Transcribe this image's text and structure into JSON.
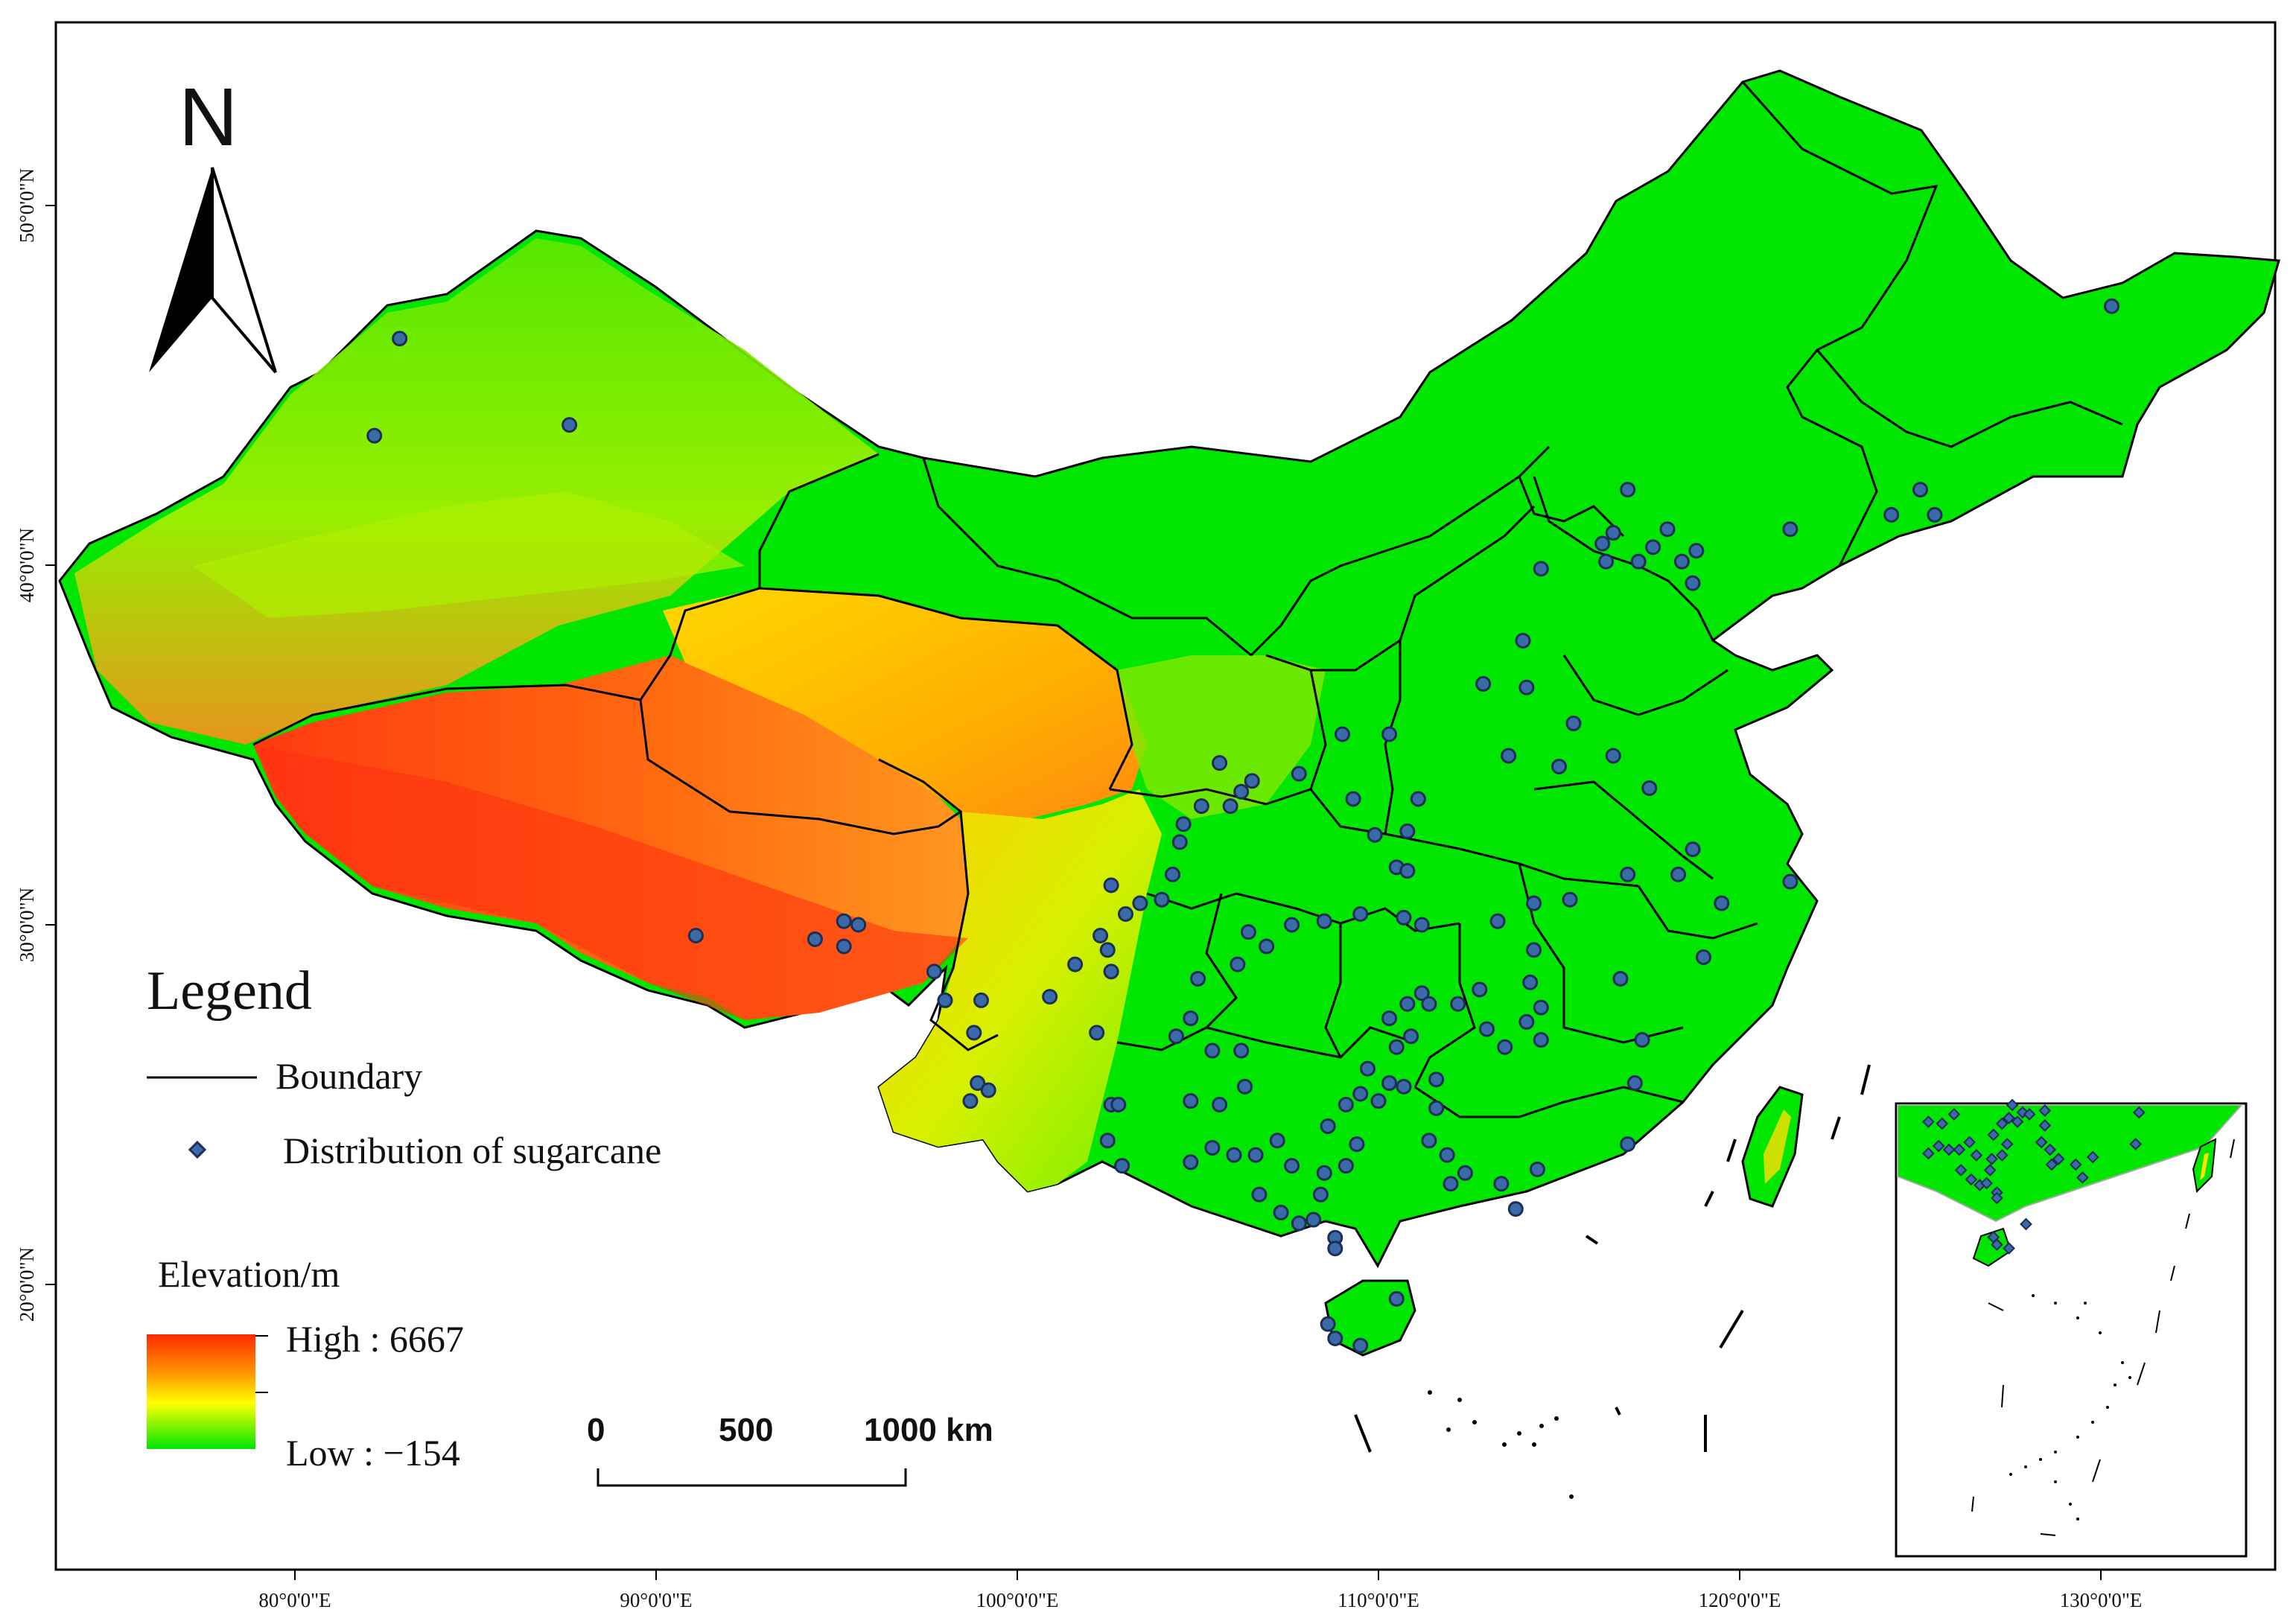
{
  "north_label": "N",
  "legend": {
    "title": "Legend",
    "boundary_label": "Boundary",
    "distribution_label": "Distribution of sugarcane",
    "elevation_title": "Elevation/m",
    "high_label": "High : 6667",
    "low_label": "Low : −154",
    "elevation_high_color": "#ff2a00",
    "elevation_mid_color": "#ffff00",
    "elevation_low_color": "#00e600"
  },
  "scale_bar": {
    "labels": [
      "0",
      "500",
      "1000 km"
    ]
  },
  "axes": {
    "x_ticks": [
      "80°0'0\"E",
      "90°0'0\"E",
      "100°0'0\"E",
      "110°0'0\"E",
      "120°0'0\"E",
      "130°0'0\"E"
    ],
    "y_ticks": [
      "50°0'0\"N",
      "40°0'0\"N",
      "30°0'0\"N",
      "20°0'0\"N"
    ]
  },
  "colors": {
    "point_fill": "#3a6aa8",
    "point_stroke": "#1d2f55",
    "boundary": "#000000"
  },
  "points": [
    [
      82.9,
      46.3
    ],
    [
      82.2,
      43.6
    ],
    [
      87.6,
      43.9
    ],
    [
      91.1,
      29.7
    ],
    [
      94.4,
      29.6
    ],
    [
      95.2,
      30.1
    ],
    [
      95.6,
      30.0
    ],
    [
      95.2,
      29.4
    ],
    [
      97.7,
      28.7
    ],
    [
      98.0,
      27.9
    ],
    [
      99.0,
      27.9
    ],
    [
      98.8,
      27.0
    ],
    [
      98.9,
      25.6
    ],
    [
      98.7,
      25.1
    ],
    [
      99.2,
      25.4
    ],
    [
      100.9,
      28.0
    ],
    [
      101.6,
      28.9
    ],
    [
      102.3,
      29.7
    ],
    [
      102.5,
      29.3
    ],
    [
      102.6,
      28.7
    ],
    [
      102.2,
      27.0
    ],
    [
      102.6,
      25.0
    ],
    [
      102.8,
      25.0
    ],
    [
      102.5,
      24.0
    ],
    [
      102.9,
      23.3
    ],
    [
      103.0,
      30.3
    ],
    [
      103.4,
      30.6
    ],
    [
      102.6,
      31.1
    ],
    [
      104.0,
      30.7
    ],
    [
      104.3,
      31.4
    ],
    [
      104.5,
      32.3
    ],
    [
      104.6,
      32.8
    ],
    [
      105.1,
      33.3
    ],
    [
      105.9,
      33.3
    ],
    [
      106.2,
      33.7
    ],
    [
      106.5,
      34.0
    ],
    [
      105.6,
      34.5
    ],
    [
      107.8,
      34.2
    ],
    [
      109.0,
      35.3
    ],
    [
      110.3,
      35.3
    ],
    [
      111.1,
      33.5
    ],
    [
      110.8,
      32.6
    ],
    [
      109.9,
      32.5
    ],
    [
      109.3,
      33.5
    ],
    [
      110.5,
      31.6
    ],
    [
      110.8,
      31.5
    ],
    [
      111.2,
      30.0
    ],
    [
      110.7,
      30.2
    ],
    [
      109.5,
      30.3
    ],
    [
      108.5,
      30.1
    ],
    [
      107.6,
      30.0
    ],
    [
      106.4,
      29.8
    ],
    [
      106.9,
      29.4
    ],
    [
      106.1,
      28.9
    ],
    [
      105.0,
      28.5
    ],
    [
      104.8,
      27.4
    ],
    [
      104.4,
      26.9
    ],
    [
      105.4,
      26.5
    ],
    [
      106.2,
      26.5
    ],
    [
      106.3,
      25.5
    ],
    [
      105.6,
      25.0
    ],
    [
      104.8,
      25.1
    ],
    [
      104.8,
      23.4
    ],
    [
      105.4,
      23.8
    ],
    [
      106.0,
      23.6
    ],
    [
      106.6,
      23.6
    ],
    [
      107.2,
      24.0
    ],
    [
      107.6,
      23.3
    ],
    [
      106.7,
      22.5
    ],
    [
      107.3,
      22.0
    ],
    [
      107.8,
      21.7
    ],
    [
      108.2,
      21.8
    ],
    [
      108.8,
      21.3
    ],
    [
      108.8,
      21.0
    ],
    [
      108.4,
      22.5
    ],
    [
      108.5,
      23.1
    ],
    [
      109.1,
      23.3
    ],
    [
      109.4,
      23.9
    ],
    [
      108.6,
      24.4
    ],
    [
      109.1,
      25.0
    ],
    [
      109.5,
      25.3
    ],
    [
      110.0,
      25.1
    ],
    [
      110.3,
      25.6
    ],
    [
      110.7,
      25.5
    ],
    [
      109.7,
      26.0
    ],
    [
      110.5,
      26.6
    ],
    [
      110.9,
      26.9
    ],
    [
      110.3,
      27.4
    ],
    [
      110.8,
      27.8
    ],
    [
      111.2,
      28.1
    ],
    [
      111.4,
      27.8
    ],
    [
      112.2,
      27.8
    ],
    [
      112.8,
      28.2
    ],
    [
      113.0,
      27.1
    ],
    [
      113.5,
      26.6
    ],
    [
      114.1,
      27.3
    ],
    [
      114.5,
      26.8
    ],
    [
      114.5,
      27.7
    ],
    [
      114.2,
      28.4
    ],
    [
      114.3,
      29.3
    ],
    [
      113.3,
      30.1
    ],
    [
      114.3,
      30.6
    ],
    [
      115.3,
      30.7
    ],
    [
      116.7,
      28.5
    ],
    [
      117.1,
      25.6
    ],
    [
      117.3,
      26.8
    ],
    [
      116.9,
      23.9
    ],
    [
      114.4,
      23.2
    ],
    [
      113.4,
      22.8
    ],
    [
      112.0,
      22.8
    ],
    [
      111.4,
      24.0
    ],
    [
      111.6,
      24.9
    ],
    [
      112.4,
      23.1
    ],
    [
      113.8,
      22.1
    ],
    [
      108.6,
      18.9
    ],
    [
      108.8,
      18.5
    ],
    [
      109.5,
      18.3
    ],
    [
      110.5,
      19.6
    ],
    [
      111.6,
      25.7
    ],
    [
      111.9,
      23.6
    ],
    [
      113.6,
      34.7
    ],
    [
      115.0,
      34.4
    ],
    [
      116.5,
      34.7
    ],
    [
      117.5,
      33.8
    ],
    [
      118.3,
      31.4
    ],
    [
      118.7,
      32.1
    ],
    [
      119.5,
      30.6
    ],
    [
      119.0,
      29.1
    ],
    [
      116.9,
      31.4
    ],
    [
      121.4,
      31.2
    ],
    [
      114.1,
      36.6
    ],
    [
      114.0,
      37.9
    ],
    [
      114.5,
      39.9
    ],
    [
      116.3,
      40.1
    ],
    [
      116.2,
      40.6
    ],
    [
      116.5,
      40.9
    ],
    [
      117.2,
      40.1
    ],
    [
      117.6,
      40.5
    ],
    [
      118.0,
      41.0
    ],
    [
      118.4,
      40.1
    ],
    [
      118.8,
      40.4
    ],
    [
      118.7,
      39.5
    ],
    [
      116.9,
      42.1
    ],
    [
      121.4,
      41.0
    ],
    [
      124.2,
      41.4
    ],
    [
      125.0,
      42.1
    ],
    [
      125.4,
      41.4
    ],
    [
      130.3,
      47.2
    ],
    [
      115.4,
      35.6
    ],
    [
      112.9,
      36.7
    ]
  ]
}
